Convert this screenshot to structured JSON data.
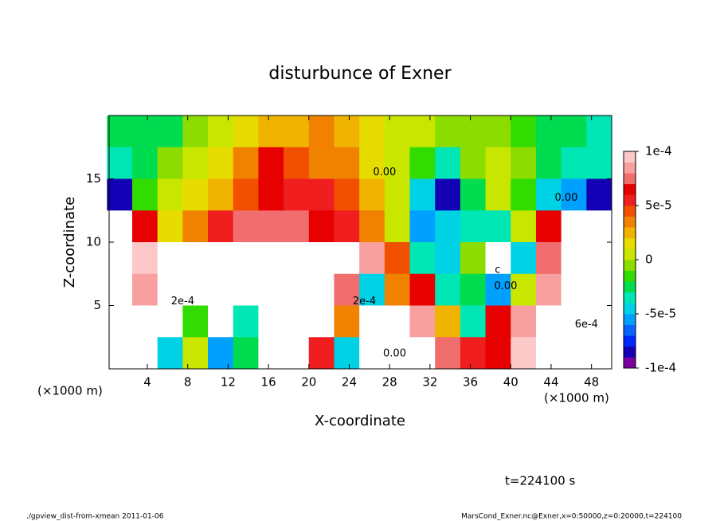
{
  "chart_data": {
    "type": "contour",
    "title": "disturbunce of Exner",
    "x_label": "X-coordinate",
    "y_label": "Z-coordinate",
    "x_unit": "(×1000 m)",
    "x_unit_right": "(×1000 m)",
    "time_label": "t=224100 s",
    "footer_left": "./gpview_dist-from-xmean  2011-01-06",
    "footer_right": "MarsCond_Exner.nc@Exner,x=0:50000,z=0:20000,t=224100",
    "xlim": [
      0,
      50
    ],
    "ylim": [
      0,
      20
    ],
    "xticks": [
      4,
      8,
      12,
      16,
      20,
      24,
      28,
      32,
      36,
      40,
      44,
      48
    ],
    "yticks": [
      5,
      10,
      15
    ],
    "x": [
      1.25,
      3.75,
      6.25,
      8.75,
      11.25,
      13.75,
      16.25,
      18.75,
      21.25,
      23.75,
      26.25,
      28.75,
      31.25,
      33.75,
      36.25,
      38.75,
      41.25,
      43.75,
      46.25,
      48.75
    ],
    "y": [
      18.75,
      16.25,
      13.75,
      11.25,
      8.75,
      6.25,
      3.75,
      1.25
    ],
    "values": [
      [
        -3e-05,
        -3e-05,
        -2.5e-05,
        -1e-05,
        0,
        1e-05,
        2e-05,
        2.5e-05,
        3e-05,
        2.5e-05,
        1.5e-05,
        5e-06,
        0,
        -5e-06,
        -1e-05,
        -1e-05,
        -2e-05,
        -3e-05,
        -3e-05,
        -3.5e-05
      ],
      [
        -4e-05,
        -3e-05,
        -1e-05,
        0,
        1e-05,
        3e-05,
        6e-05,
        4e-05,
        3.5e-05,
        3e-05,
        1.5e-05,
        5e-06,
        -2e-05,
        -4e-05,
        -1e-05,
        0,
        -1e-05,
        -3e-05,
        -4e-05,
        -4e-05
      ],
      [
        -8e-05,
        -2e-05,
        0,
        1e-05,
        2e-05,
        4e-05,
        6e-05,
        5e-05,
        5e-05,
        4e-05,
        2e-05,
        0,
        -5e-05,
        -8e-05,
        -3e-05,
        0,
        -2e-05,
        -5e-05,
        -6e-05,
        -8e-05
      ],
      [
        0.0002,
        6e-05,
        1e-05,
        3e-05,
        5e-05,
        7e-05,
        7e-05,
        7e-05,
        6e-05,
        5e-05,
        3e-05,
        5e-06,
        -6e-05,
        -5e-05,
        -4e-05,
        -4e-05,
        0,
        6e-05,
        0.0002,
        0.0002
      ],
      [
        0.0002,
        9e-05,
        0.0002,
        0.0002,
        0.0002,
        0.0002,
        0.0002,
        0.0002,
        0.0002,
        0.0002,
        8e-05,
        4e-05,
        -4e-05,
        -5e-05,
        -1e-05,
        0.0002,
        -5e-05,
        7e-05,
        0.0002,
        -0.0002
      ],
      [
        0.0002,
        8e-05,
        0.0002,
        0.0002,
        0.0002,
        0.0002,
        0.0002,
        0.0002,
        0.0002,
        7e-05,
        -5e-05,
        3e-05,
        6e-05,
        -4e-05,
        -3e-05,
        -6e-05,
        0,
        8e-05,
        0.0002,
        -0.0002
      ],
      [
        0.0002,
        0.0002,
        0.0002,
        -2e-05,
        0.0002,
        -4e-05,
        0.0002,
        0.0002,
        0.0002,
        3e-05,
        0.0002,
        0.0002,
        8e-05,
        2e-05,
        -4e-05,
        6e-05,
        8e-05,
        0.0002,
        -0.0002,
        -0.0002
      ],
      [
        -0.0002,
        0.0002,
        -5e-05,
        0,
        -6e-05,
        -3e-05,
        0.0002,
        0.0002,
        5e-05,
        -5e-05,
        0.0002,
        0.0002,
        0.0002,
        7e-05,
        5e-05,
        6e-05,
        9e-05,
        0.0002,
        -0.0002,
        -0.0002
      ]
    ],
    "colors": [
      "#7a00a0",
      "#1400b4",
      "#0028ff",
      "#0a64ff",
      "#00a0ff",
      "#00d2e6",
      "#00e6b4",
      "#00dc50",
      "#32dc00",
      "#8cdc00",
      "#c8e600",
      "#e6dc00",
      "#f0b400",
      "#f08200",
      "#f05000",
      "#f01e1e",
      "#e60000",
      "#f06e6e",
      "#f8a0a0",
      "#fcc8c8"
    ],
    "colorbar_lim": [
      -0.0001,
      0.0001
    ],
    "colorbar_ticks": [
      {
        "value": 0.0001,
        "label": "1e-4"
      },
      {
        "value": 5e-05,
        "label": "5e-5"
      },
      0,
      {
        "value": -5e-05,
        "label": "-5e-5"
      },
      {
        "value": -0.0001,
        "label": "-1e-4"
      }
    ],
    "contour_labels": [
      {
        "x": 7.5,
        "y": 5.3,
        "label": "2e-4"
      },
      {
        "x": 25.5,
        "y": 5.3,
        "label": "2e-4"
      },
      {
        "x": 28.5,
        "y": 1.2,
        "label": "0.00"
      },
      {
        "x": 27.5,
        "y": 15.5,
        "label": "0.00"
      },
      {
        "x": 39.5,
        "y": 6.5,
        "label": "0.00"
      },
      {
        "x": 45.5,
        "y": 13.5,
        "label": "0.00"
      },
      {
        "x": 47.5,
        "y": 3.5,
        "label": "6e-4"
      },
      {
        "x": 38.7,
        "y": 7.8,
        "label": "c"
      }
    ]
  }
}
